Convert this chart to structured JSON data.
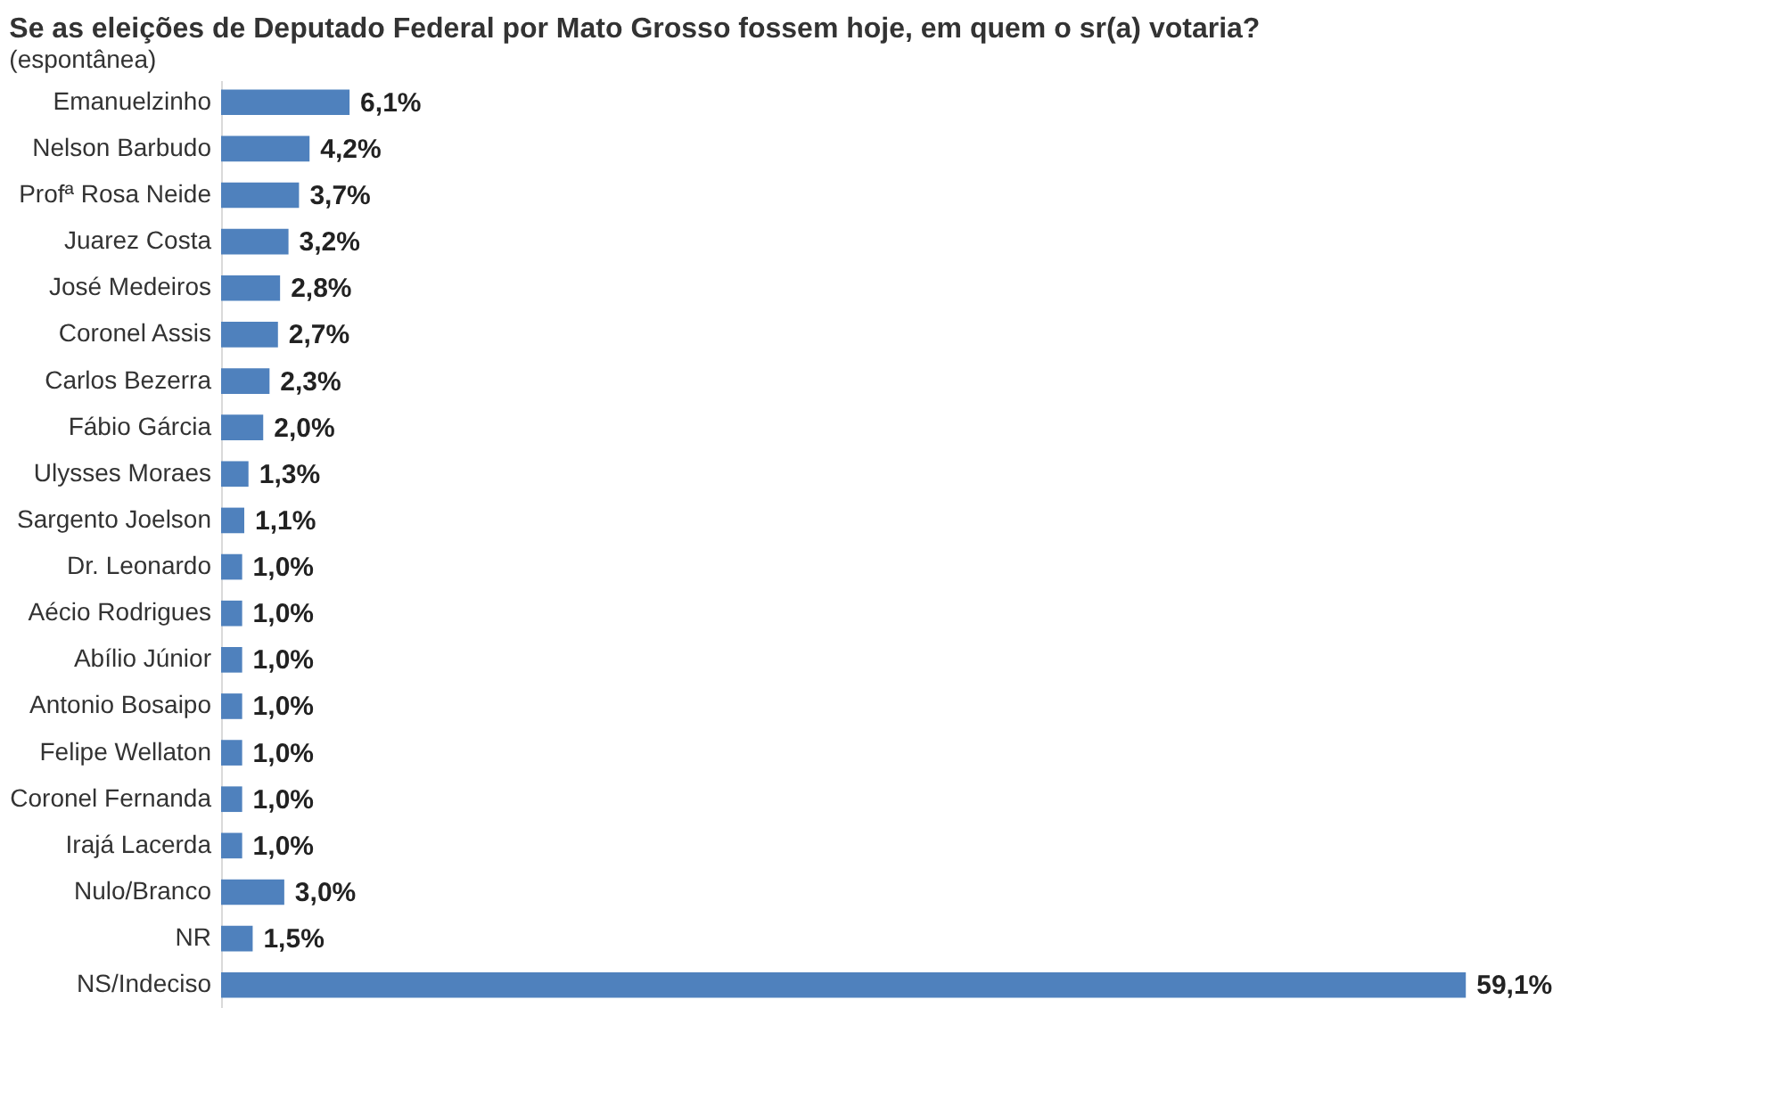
{
  "chart_data": {
    "type": "bar",
    "orientation": "horizontal",
    "title": "Se as eleições de Deputado Federal por Mato Grosso fossem hoje, em quem o sr(a) votaria?",
    "subtitle": "(espontânea)",
    "categories": [
      "Emanuelzinho",
      "Nelson Barbudo",
      "Profª Rosa Neide",
      "Juarez Costa",
      "José Medeiros",
      "Coronel Assis",
      "Carlos Bezerra",
      "Fábio Gárcia",
      "Ulysses Moraes",
      "Sargento Joelson",
      "Dr. Leonardo",
      "Aécio Rodrigues",
      "Abílio Júnior",
      "Antonio Bosaipo",
      "Felipe Wellaton",
      "Coronel Fernanda",
      "Irajá Lacerda",
      "Nulo/Branco",
      "NR",
      "NS/Indeciso"
    ],
    "values": [
      6.1,
      4.2,
      3.7,
      3.2,
      2.8,
      2.7,
      2.3,
      2.0,
      1.3,
      1.1,
      1.0,
      1.0,
      1.0,
      1.0,
      1.0,
      1.0,
      1.0,
      3.0,
      1.5,
      59.1
    ],
    "value_labels": [
      "6,1%",
      "4,2%",
      "3,7%",
      "3,2%",
      "2,8%",
      "2,7%",
      "2,3%",
      "2,0%",
      "1,3%",
      "1,1%",
      "1,0%",
      "1,0%",
      "1,0%",
      "1,0%",
      "1,0%",
      "1,0%",
      "1,0%",
      "3,0%",
      "1,5%",
      "59,1%"
    ],
    "color": "#4f81bd"
  }
}
